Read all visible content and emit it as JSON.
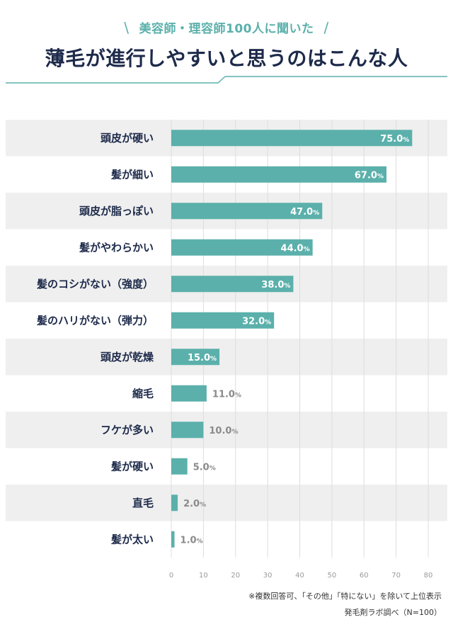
{
  "header": {
    "subtitle": "美容師・理容師100人に聞いた",
    "title": "薄毛が進行しやすいと思うのはこんな人",
    "slash_left": "\\",
    "slash_right": "/"
  },
  "colors": {
    "accent": "#5bb0ab",
    "title": "#1d2a4a",
    "stripe": "#efefef",
    "value_inside": "#ffffff",
    "value_outside": "#8a8a8a"
  },
  "chart_data": {
    "type": "bar",
    "orientation": "horizontal",
    "categories": [
      "頭皮が硬い",
      "髪が細い",
      "頭皮が脂っぽい",
      "髪がやわらかい",
      "髪のコシがない（強度）",
      "髪のハリがない（弾力）",
      "頭皮が乾燥",
      "縮毛",
      "フケが多い",
      "髪が硬い",
      "直毛",
      "髪が太い"
    ],
    "values": [
      75.0,
      67.0,
      47.0,
      44.0,
      38.0,
      32.0,
      15.0,
      11.0,
      10.0,
      5.0,
      2.0,
      1.0
    ],
    "value_labels": [
      "75.0",
      "67.0",
      "47.0",
      "44.0",
      "38.0",
      "32.0",
      "15.0",
      "11.0",
      "10.0",
      "5.0",
      "2.0",
      "1.0"
    ],
    "unit": "%",
    "xlim": [
      0,
      80
    ],
    "xticks": [
      0,
      10,
      20,
      30,
      40,
      50,
      60,
      70,
      80
    ],
    "grid": true
  },
  "footer": {
    "note": "※複数回答可、「その他」「特にない」を除いて上位表示",
    "source": "発毛剤ラボ調べ（N=100）"
  }
}
